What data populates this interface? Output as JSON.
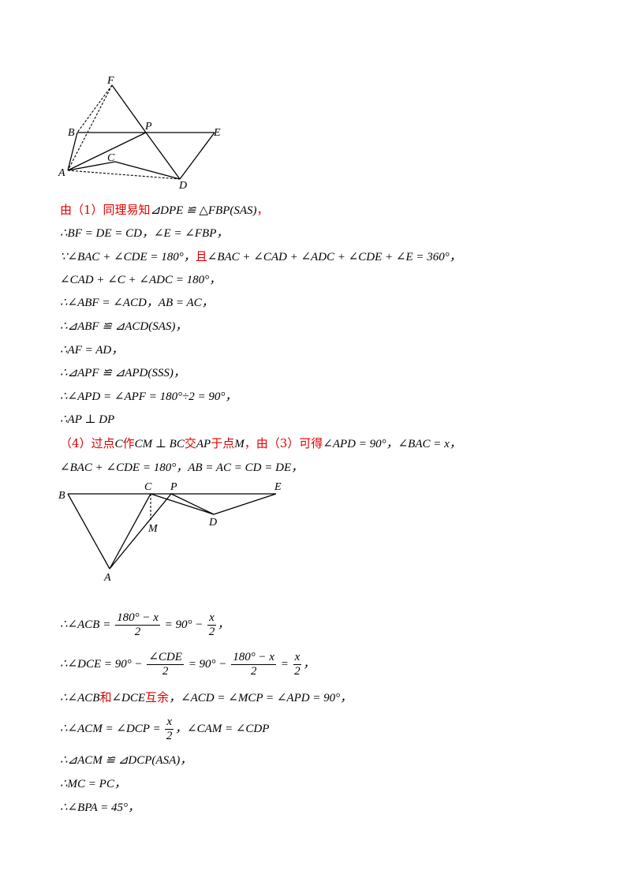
{
  "figure1": {
    "labels": {
      "F": "F",
      "B": "B",
      "P": "P",
      "E": "E",
      "C": "C",
      "A": "A",
      "D": "D"
    }
  },
  "figure2": {
    "labels": {
      "B": "B",
      "C": "C",
      "P": "P",
      "E": "E",
      "M": "M",
      "D": "D",
      "A": "A"
    }
  },
  "lines": {
    "l1_red": "由（1）同理易知",
    "l1_math": "⊿DPE ≌ △FBP(SAS)",
    "l1_tail": "，",
    "l2": "∴BF = DE = CD，∠E = ∠FBP，",
    "l3_a": "∵∠BAC + ∠CDE = 180°，",
    "l3_red": "且",
    "l3_b": "∠BAC + ∠CAD + ∠ADC + ∠CDE + ∠E = 360°，",
    "l4": "∠CAD + ∠C + ∠ADC = 180°，",
    "l5": "∴∠ABF = ∠ACD，AB = AC，",
    "l6": "∴⊿ABF ≌ ⊿ACD(SAS)，",
    "l7": "∴AF = AD，",
    "l8": "∴⊿APF ≌ ⊿APD(SSS)，",
    "l9": "∴∠APD = ∠APF = 180°÷2 = 90°，",
    "l10": "∴AP ⊥ DP",
    "l11_red1": "（4）过点",
    "l11_m1": "C",
    "l11_red2": "作",
    "l11_m2": "CM ⊥ BC",
    "l11_red3": "交",
    "l11_m3": "AP",
    "l11_red4": "于点",
    "l11_m4": "M",
    "l11_red5": "，由（3）可得",
    "l11_m5": "∠APD = 90°，∠BAC = x，",
    "l12": "∠BAC + ∠CDE = 180°，AB = AC = CD = DE，",
    "l13_a": "∴∠ACB =",
    "l13_num1": "180° − x",
    "l13_den1": "2",
    "l13_b": "= 90° −",
    "l13_num2": "x",
    "l13_den2": "2",
    "l13_c": "，",
    "l14_a": "∴∠DCE = 90° −",
    "l14_num1": "∠CDE",
    "l14_den1": "2",
    "l14_b": "= 90° −",
    "l14_num2": "180° − x",
    "l14_den2": "2",
    "l14_c": "=",
    "l14_num3": "x",
    "l14_den3": "2",
    "l14_d": "，",
    "l15_a": "∴∠ACB",
    "l15_red1": "和",
    "l15_b": "∠DCE",
    "l15_red2": "互余",
    "l15_c": "，∠ACD = ∠MCP = ∠APD = 90°，",
    "l16_a": "∴∠ACM = ∠DCP =",
    "l16_num": "x",
    "l16_den": "2",
    "l16_b": "，∠CAM = ∠CDP",
    "l17": "∴⊿ACM ≌ ⊿DCP(ASA)，",
    "l18": "∴MC = PC，",
    "l19": "∴∠BPA = 45°，"
  }
}
